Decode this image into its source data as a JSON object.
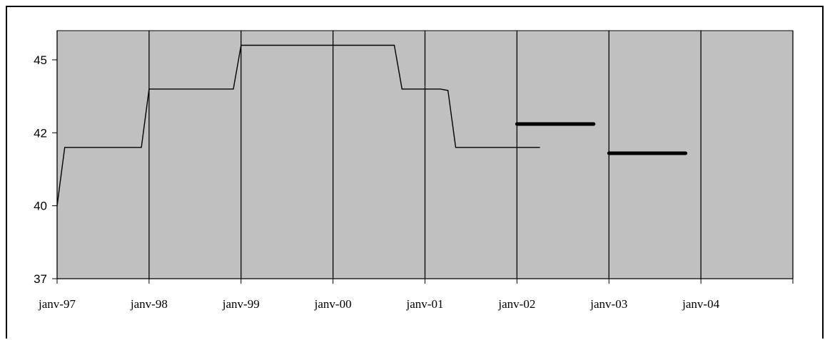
{
  "chart_data": {
    "type": "line",
    "title": "",
    "xlabel": "",
    "ylabel": "",
    "x_tick_labels": [
      "janv-97",
      "janv-98",
      "janv-99",
      "janv-00",
      "janv-01",
      "janv-02",
      "janv-03",
      "janv-04"
    ],
    "y_tick_labels": [
      "37",
      "40",
      "42",
      "45"
    ],
    "ylim": [
      37,
      45.5
    ],
    "xlim": [
      "1997-01",
      "2005-01"
    ],
    "plot_background": "#c0c0c0",
    "grid": "vertical",
    "legend": "none",
    "series": [
      {
        "style": "thin",
        "color": "#000000",
        "points": [
          {
            "x": "1997-01",
            "y": 39.5
          },
          {
            "x": "1997-02",
            "y": 41.5
          },
          {
            "x": "1997-12",
            "y": 41.5
          },
          {
            "x": "1998-01",
            "y": 43.5
          },
          {
            "x": "1998-12",
            "y": 43.5
          },
          {
            "x": "1999-01",
            "y": 45.0
          },
          {
            "x": "2000-09",
            "y": 45.0
          },
          {
            "x": "2000-10",
            "y": 43.5
          },
          {
            "x": "2001-03",
            "y": 43.5
          },
          {
            "x": "2001-04",
            "y": 43.45
          },
          {
            "x": "2001-05",
            "y": 41.5
          },
          {
            "x": "2002-04",
            "y": 41.5
          }
        ]
      },
      {
        "style": "thick",
        "color": "#000000",
        "points": [
          {
            "x": "2002-01",
            "y": 42.3
          },
          {
            "x": "2002-11",
            "y": 42.3
          }
        ]
      },
      {
        "style": "thick",
        "color": "#000000",
        "points": [
          {
            "x": "2003-01",
            "y": 41.3
          },
          {
            "x": "2003-11",
            "y": 41.3
          }
        ]
      }
    ]
  }
}
